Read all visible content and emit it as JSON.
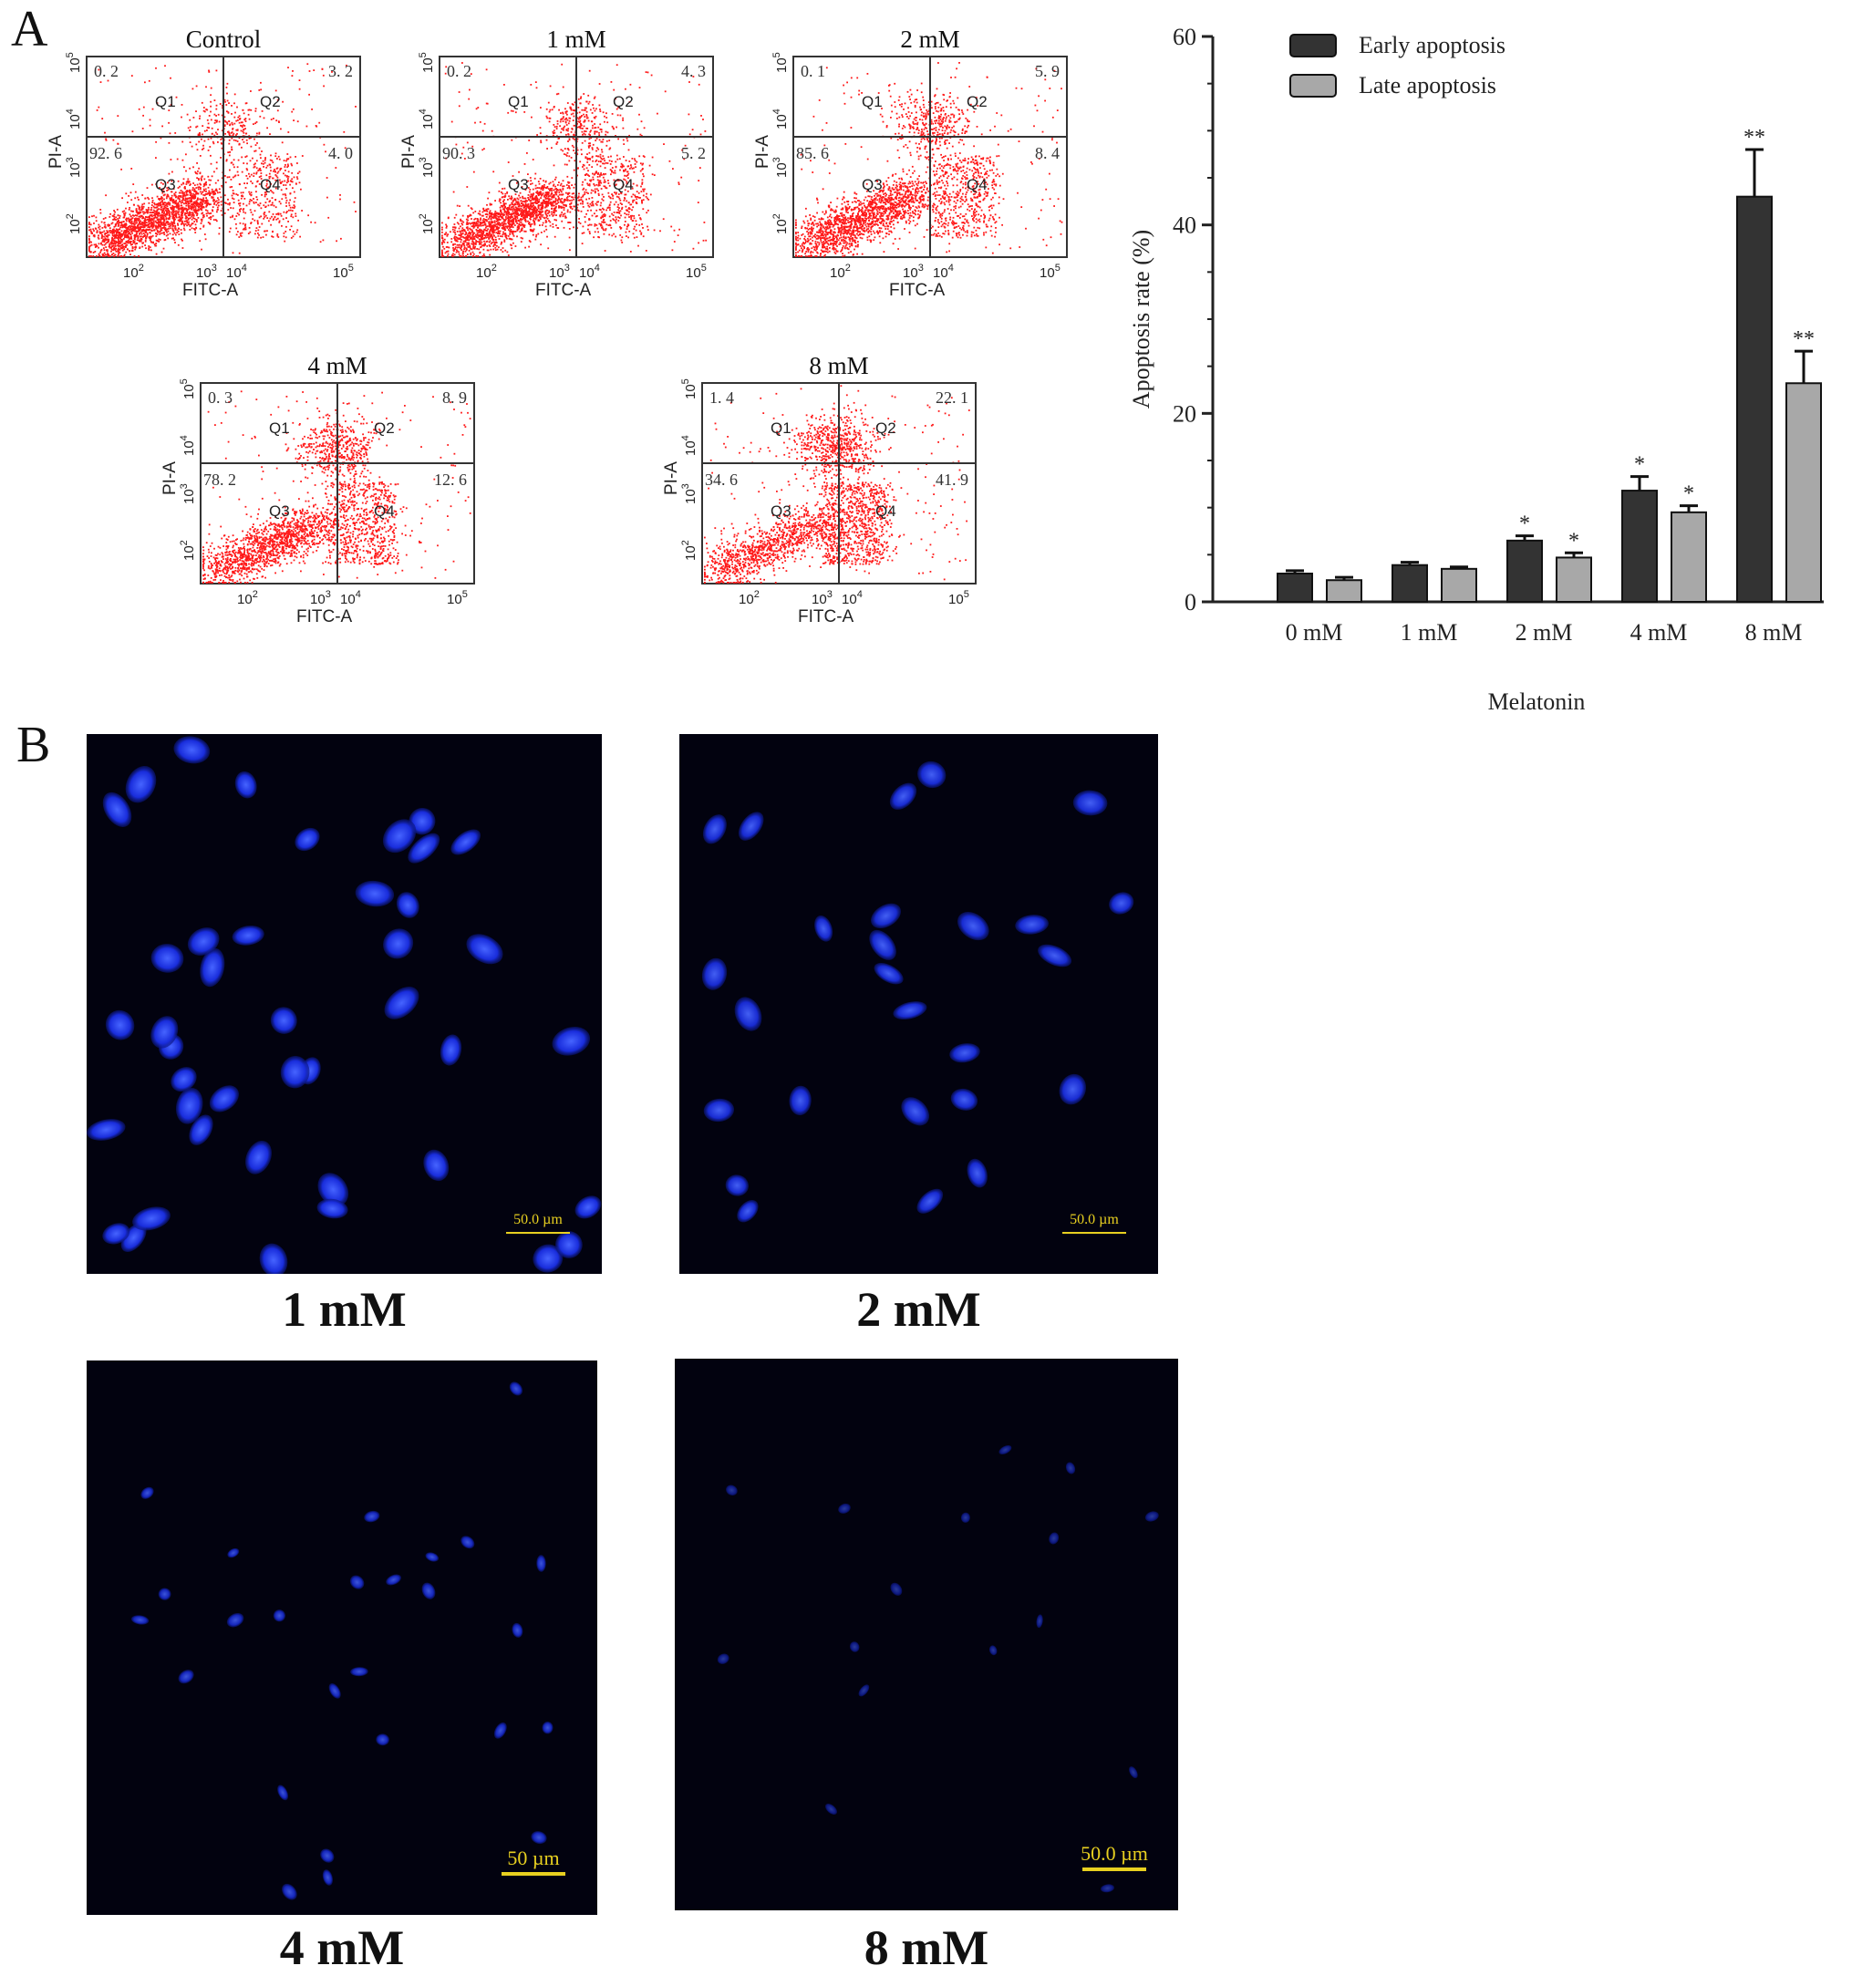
{
  "panel_labels": [
    "A",
    "B"
  ],
  "flow_plots": [
    {
      "title": "Control",
      "q1": "0. 2",
      "q2": "3. 2",
      "q3": "92. 6",
      "q4": "4. 0",
      "spread": 0.0
    },
    {
      "title": "1 mM",
      "q1": "0. 2",
      "q2": "4. 3",
      "q3": "90. 3",
      "q4": "5. 2",
      "spread": 0.15
    },
    {
      "title": "2 mM",
      "q1": "0. 1",
      "q2": "5. 9",
      "q3": "85. 6",
      "q4": "8. 4",
      "spread": 0.3
    },
    {
      "title": "4 mM",
      "q1": "0. 3",
      "q2": "8. 9",
      "q3": "78. 2",
      "q4": "12. 6",
      "spread": 0.55
    },
    {
      "title": "8 mM",
      "q1": "1. 4",
      "q2": "22. 1",
      "q3": "34. 6",
      "q4": "41. 9",
      "spread": 0.9
    }
  ],
  "flow_axes": {
    "x_label": "FITC-A",
    "y_label": "PI-A",
    "tick_base": "10",
    "tick_exps": [
      "2",
      "3",
      "4",
      "5"
    ],
    "quadrants": [
      "Q1",
      "Q2",
      "Q3",
      "Q4"
    ]
  },
  "chart_data": {
    "type": "bar",
    "categories": [
      "0 mM",
      "1 mM",
      "2 mM",
      "4 mM",
      "8 mM"
    ],
    "series": [
      {
        "name": "Early apoptosis",
        "values": [
          3.0,
          3.9,
          6.5,
          11.8,
          43.0
        ],
        "errors": [
          0.3,
          0.3,
          0.5,
          1.5,
          5.0
        ],
        "sig": [
          "",
          "",
          "*",
          "*",
          "**"
        ],
        "color": "#333333"
      },
      {
        "name": "Late apoptosis",
        "values": [
          2.3,
          3.5,
          4.7,
          9.5,
          23.2
        ],
        "errors": [
          0.3,
          0.2,
          0.5,
          0.7,
          3.4
        ],
        "sig": [
          "",
          "",
          "*",
          "*",
          "**"
        ],
        "color": "#a8a8a8"
      }
    ],
    "xlabel": "Melatonin",
    "ylabel": "Apoptosis rate (%)",
    "ylim": [
      0,
      60
    ],
    "yticks": [
      "0",
      "20",
      "40",
      "60"
    ],
    "legend_position": "top-left"
  },
  "micrographs": [
    {
      "label": "1 mM",
      "scale_text": "50.0 µm",
      "cell_count": 42,
      "cell_size": 1.0,
      "brightness": 1.0
    },
    {
      "label": "2 mM",
      "scale_text": "50.0 µm",
      "cell_count": 26,
      "cell_size": 0.9,
      "brightness": 0.95
    },
    {
      "label": "4 mM",
      "scale_text": "50 µm",
      "cell_count": 26,
      "cell_size": 0.45,
      "brightness": 0.85
    },
    {
      "label": "8 mM",
      "scale_text": "50.0 µm",
      "cell_count": 16,
      "cell_size": 0.35,
      "brightness": 0.6
    }
  ]
}
